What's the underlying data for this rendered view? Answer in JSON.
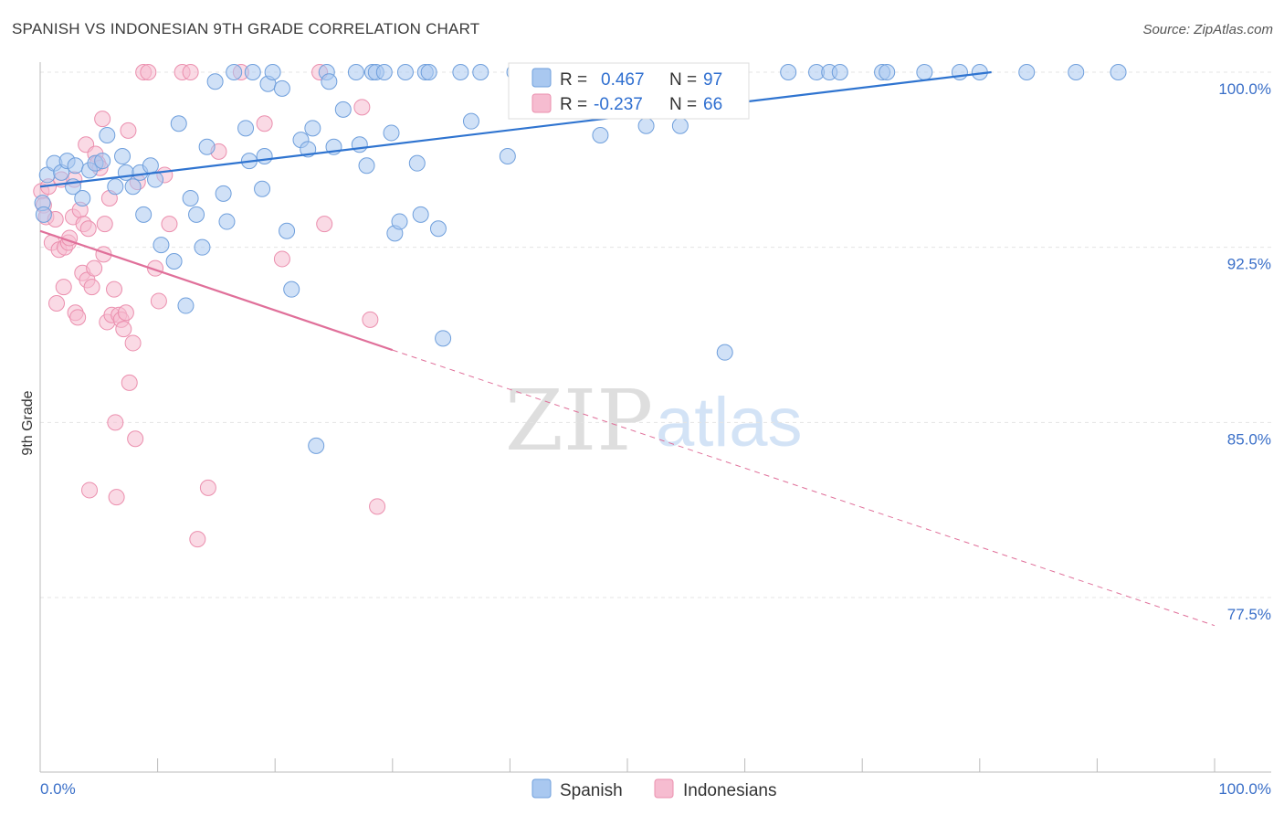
{
  "title": "SPANISH VS INDONESIAN 9TH GRADE CORRELATION CHART",
  "source": "Source: ZipAtlas.com",
  "watermark": {
    "zip": "ZIP",
    "atlas": "atlas"
  },
  "legend": {
    "spanish": {
      "r_label": "R =",
      "r_value": "0.467",
      "n_label": "N =",
      "n_value": "97"
    },
    "indonesian": {
      "r_label": "R =",
      "r_value": "-0.237",
      "n_label": "N =",
      "n_value": "66"
    }
  },
  "colors": {
    "spanish_fill": "#a9c8f0",
    "spanish_stroke": "#6f9fdc",
    "spanish_line": "#2f74d0",
    "indonesian_fill": "#f6bcd0",
    "indonesian_stroke": "#eb8fae",
    "indonesian_line": "#e0709a",
    "tick_text": "#3a6fc8",
    "grid": "#e4e4e4"
  },
  "chart_data": {
    "type": "scatter",
    "title": "SPANISH VS INDONESIAN 9TH GRADE CORRELATION CHART",
    "xlabel": "",
    "ylabel": "9th Grade",
    "xlim": [
      0,
      100
    ],
    "ylim": [
      72,
      101
    ],
    "x_tick_labels": [
      "0.0%",
      "100.0%"
    ],
    "y_ticks": [
      77.5,
      85.0,
      92.5,
      100.0
    ],
    "y_tick_labels": [
      "77.5%",
      "85.0%",
      "92.5%",
      "100.0%"
    ],
    "grid": true,
    "legend_position": "top-center",
    "series": [
      {
        "name": "Spanish",
        "r": 0.467,
        "n": 97,
        "trend": {
          "x": [
            0,
            81
          ],
          "y": [
            95.1,
            100.0
          ]
        },
        "points": [
          [
            0.2,
            94.4
          ],
          [
            0.3,
            93.9
          ],
          [
            0.6,
            95.6
          ],
          [
            1.2,
            96.1
          ],
          [
            1.8,
            95.7
          ],
          [
            2.3,
            96.2
          ],
          [
            2.8,
            95.1
          ],
          [
            3.0,
            96.0
          ],
          [
            3.6,
            94.6
          ],
          [
            4.2,
            95.8
          ],
          [
            4.7,
            96.1
          ],
          [
            5.3,
            96.2
          ],
          [
            5.7,
            97.3
          ],
          [
            6.4,
            95.1
          ],
          [
            7.0,
            96.4
          ],
          [
            7.3,
            95.7
          ],
          [
            7.9,
            95.1
          ],
          [
            8.5,
            95.7
          ],
          [
            8.8,
            93.9
          ],
          [
            9.4,
            96.0
          ],
          [
            9.8,
            95.4
          ],
          [
            10.3,
            92.6
          ],
          [
            11.4,
            91.9
          ],
          [
            11.8,
            97.8
          ],
          [
            12.4,
            90.0
          ],
          [
            12.8,
            94.6
          ],
          [
            13.3,
            93.9
          ],
          [
            13.8,
            92.5
          ],
          [
            14.2,
            96.8
          ],
          [
            14.9,
            99.6
          ],
          [
            15.6,
            94.8
          ],
          [
            15.9,
            93.6
          ],
          [
            16.5,
            100.0
          ],
          [
            17.5,
            97.6
          ],
          [
            17.8,
            96.2
          ],
          [
            18.1,
            100.0
          ],
          [
            18.9,
            95.0
          ],
          [
            19.1,
            96.4
          ],
          [
            19.4,
            99.5
          ],
          [
            19.8,
            100.0
          ],
          [
            20.6,
            99.3
          ],
          [
            21.0,
            93.2
          ],
          [
            21.4,
            90.7
          ],
          [
            22.2,
            97.1
          ],
          [
            22.8,
            96.7
          ],
          [
            23.2,
            97.6
          ],
          [
            23.5,
            84.0
          ],
          [
            24.4,
            100.0
          ],
          [
            24.6,
            99.6
          ],
          [
            25.0,
            96.8
          ],
          [
            25.8,
            98.4
          ],
          [
            26.9,
            100.0
          ],
          [
            27.2,
            96.9
          ],
          [
            27.8,
            96.0
          ],
          [
            28.3,
            100.0
          ],
          [
            28.6,
            100.0
          ],
          [
            29.3,
            100.0
          ],
          [
            29.9,
            97.4
          ],
          [
            30.2,
            93.1
          ],
          [
            30.6,
            93.6
          ],
          [
            31.1,
            100.0
          ],
          [
            32.1,
            96.1
          ],
          [
            32.4,
            93.9
          ],
          [
            32.8,
            100.0
          ],
          [
            33.1,
            100.0
          ],
          [
            33.9,
            93.3
          ],
          [
            34.3,
            88.6
          ],
          [
            35.8,
            100.0
          ],
          [
            36.7,
            97.9
          ],
          [
            37.5,
            100.0
          ],
          [
            39.8,
            96.4
          ],
          [
            40.4,
            100.0
          ],
          [
            42.2,
            100.0
          ],
          [
            44.3,
            100.0
          ],
          [
            44.8,
            100.0
          ],
          [
            47.7,
            97.3
          ],
          [
            48.0,
            100.0
          ],
          [
            49.1,
            100.0
          ],
          [
            51.6,
            97.7
          ],
          [
            51.9,
            100.0
          ],
          [
            54.5,
            97.7
          ],
          [
            55.1,
            100.0
          ],
          [
            56.6,
            100.0
          ],
          [
            58.3,
            88.0
          ],
          [
            59.5,
            100.0
          ],
          [
            63.7,
            100.0
          ],
          [
            66.1,
            100.0
          ],
          [
            67.2,
            100.0
          ],
          [
            68.1,
            100.0
          ],
          [
            71.7,
            100.0
          ],
          [
            72.1,
            100.0
          ],
          [
            75.3,
            100.0
          ],
          [
            78.3,
            100.0
          ],
          [
            80.0,
            100.0
          ],
          [
            84.0,
            100.0
          ],
          [
            88.2,
            100.0
          ],
          [
            91.8,
            100.0
          ]
        ]
      },
      {
        "name": "Indonesians",
        "r": -0.237,
        "n": 66,
        "trend": {
          "x": [
            0,
            30
          ],
          "y": [
            93.2,
            88.1
          ]
        },
        "trend_extended": {
          "x": [
            30,
            100
          ],
          "y": [
            88.1,
            76.3
          ]
        },
        "points": [
          [
            0.1,
            94.9
          ],
          [
            0.3,
            94.3
          ],
          [
            0.5,
            93.8
          ],
          [
            0.7,
            95.1
          ],
          [
            1.0,
            92.7
          ],
          [
            1.3,
            93.7
          ],
          [
            1.4,
            90.1
          ],
          [
            1.6,
            92.4
          ],
          [
            1.8,
            95.4
          ],
          [
            2.0,
            90.8
          ],
          [
            2.1,
            92.5
          ],
          [
            2.4,
            92.7
          ],
          [
            2.5,
            92.9
          ],
          [
            2.8,
            93.8
          ],
          [
            2.9,
            95.4
          ],
          [
            3.0,
            89.7
          ],
          [
            3.2,
            89.5
          ],
          [
            3.4,
            94.1
          ],
          [
            3.6,
            91.4
          ],
          [
            3.7,
            93.5
          ],
          [
            3.9,
            96.9
          ],
          [
            4.0,
            91.1
          ],
          [
            4.1,
            93.3
          ],
          [
            4.2,
            82.1
          ],
          [
            4.4,
            90.8
          ],
          [
            4.6,
            91.6
          ],
          [
            4.7,
            96.5
          ],
          [
            4.9,
            96.1
          ],
          [
            5.1,
            95.9
          ],
          [
            5.3,
            98.0
          ],
          [
            5.4,
            92.2
          ],
          [
            5.5,
            93.5
          ],
          [
            5.7,
            89.3
          ],
          [
            5.9,
            94.6
          ],
          [
            6.1,
            89.6
          ],
          [
            6.3,
            90.7
          ],
          [
            6.4,
            85.0
          ],
          [
            6.5,
            81.8
          ],
          [
            6.7,
            89.6
          ],
          [
            6.9,
            89.4
          ],
          [
            7.1,
            89.0
          ],
          [
            7.3,
            89.7
          ],
          [
            7.5,
            97.5
          ],
          [
            7.6,
            86.7
          ],
          [
            7.9,
            88.4
          ],
          [
            8.1,
            84.3
          ],
          [
            8.3,
            95.3
          ],
          [
            8.8,
            100.0
          ],
          [
            9.2,
            100.0
          ],
          [
            9.8,
            91.6
          ],
          [
            10.1,
            90.2
          ],
          [
            10.6,
            95.6
          ],
          [
            11.0,
            93.5
          ],
          [
            12.1,
            100.0
          ],
          [
            12.8,
            100.0
          ],
          [
            13.4,
            80.0
          ],
          [
            14.3,
            82.2
          ],
          [
            15.2,
            96.6
          ],
          [
            17.1,
            100.0
          ],
          [
            19.1,
            97.8
          ],
          [
            20.6,
            92.0
          ],
          [
            23.8,
            100.0
          ],
          [
            24.2,
            93.5
          ],
          [
            27.4,
            98.5
          ],
          [
            28.1,
            89.4
          ],
          [
            28.7,
            81.4
          ]
        ]
      }
    ]
  },
  "bottom_legend": {
    "spanish": "Spanish",
    "indonesians": "Indonesians"
  }
}
